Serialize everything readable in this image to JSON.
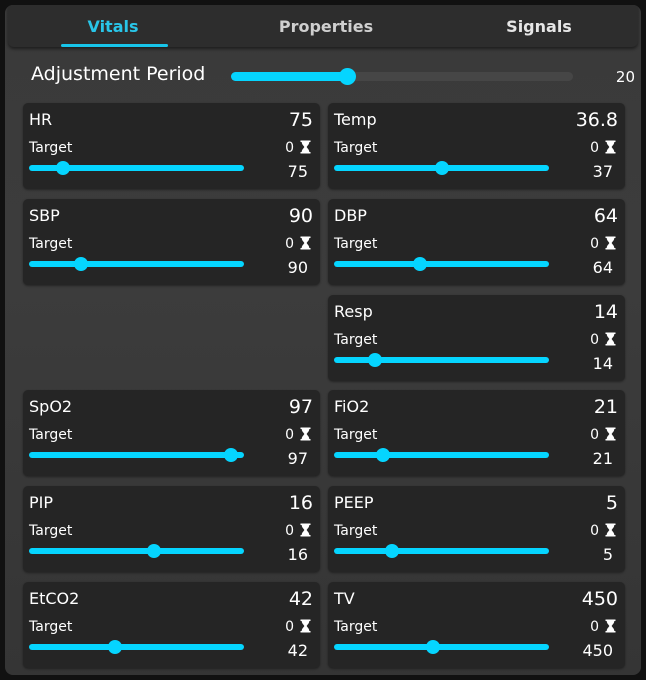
{
  "tabs": [
    {
      "label": "Vitals",
      "active": true
    },
    {
      "label": "Properties",
      "active": false
    },
    {
      "label": "Signals",
      "active": false
    }
  ],
  "adjustment": {
    "label": "Adjustment Period",
    "value": "20",
    "fraction": 0.34
  },
  "accent_color": "#05d5ff",
  "vitals": [
    {
      "id": "hr",
      "name": "HR",
      "value": "75",
      "target_label": "Target",
      "timer": "0",
      "setpoint": "75",
      "fraction": 0.16
    },
    {
      "id": "temp",
      "name": "Temp",
      "value": "36.8",
      "target_label": "Target",
      "timer": "0",
      "setpoint": "37",
      "fraction": 0.5
    },
    {
      "id": "sbp",
      "name": "SBP",
      "value": "90",
      "target_label": "Target",
      "timer": "0",
      "setpoint": "90",
      "fraction": 0.24
    },
    {
      "id": "dbp",
      "name": "DBP",
      "value": "64",
      "target_label": "Target",
      "timer": "0",
      "setpoint": "64",
      "fraction": 0.4
    },
    {
      "id": "resp",
      "name": "Resp",
      "value": "14",
      "target_label": "Target",
      "timer": "0",
      "setpoint": "14",
      "fraction": 0.19
    },
    {
      "id": "spo2",
      "name": "SpO2",
      "value": "97",
      "target_label": "Target",
      "timer": "0",
      "setpoint": "97",
      "fraction": 0.94
    },
    {
      "id": "fio2",
      "name": "FiO2",
      "value": "21",
      "target_label": "Target",
      "timer": "0",
      "setpoint": "21",
      "fraction": 0.23
    },
    {
      "id": "pip",
      "name": "PIP",
      "value": "16",
      "target_label": "Target",
      "timer": "0",
      "setpoint": "16",
      "fraction": 0.58
    },
    {
      "id": "peep",
      "name": "PEEP",
      "value": "5",
      "target_label": "Target",
      "timer": "0",
      "setpoint": "5",
      "fraction": 0.27
    },
    {
      "id": "etco2",
      "name": "EtCO2",
      "value": "42",
      "target_label": "Target",
      "timer": "0",
      "setpoint": "42",
      "fraction": 0.4
    },
    {
      "id": "tv",
      "name": "TV",
      "value": "450",
      "target_label": "Target",
      "timer": "0",
      "setpoint": "450",
      "fraction": 0.46
    }
  ]
}
